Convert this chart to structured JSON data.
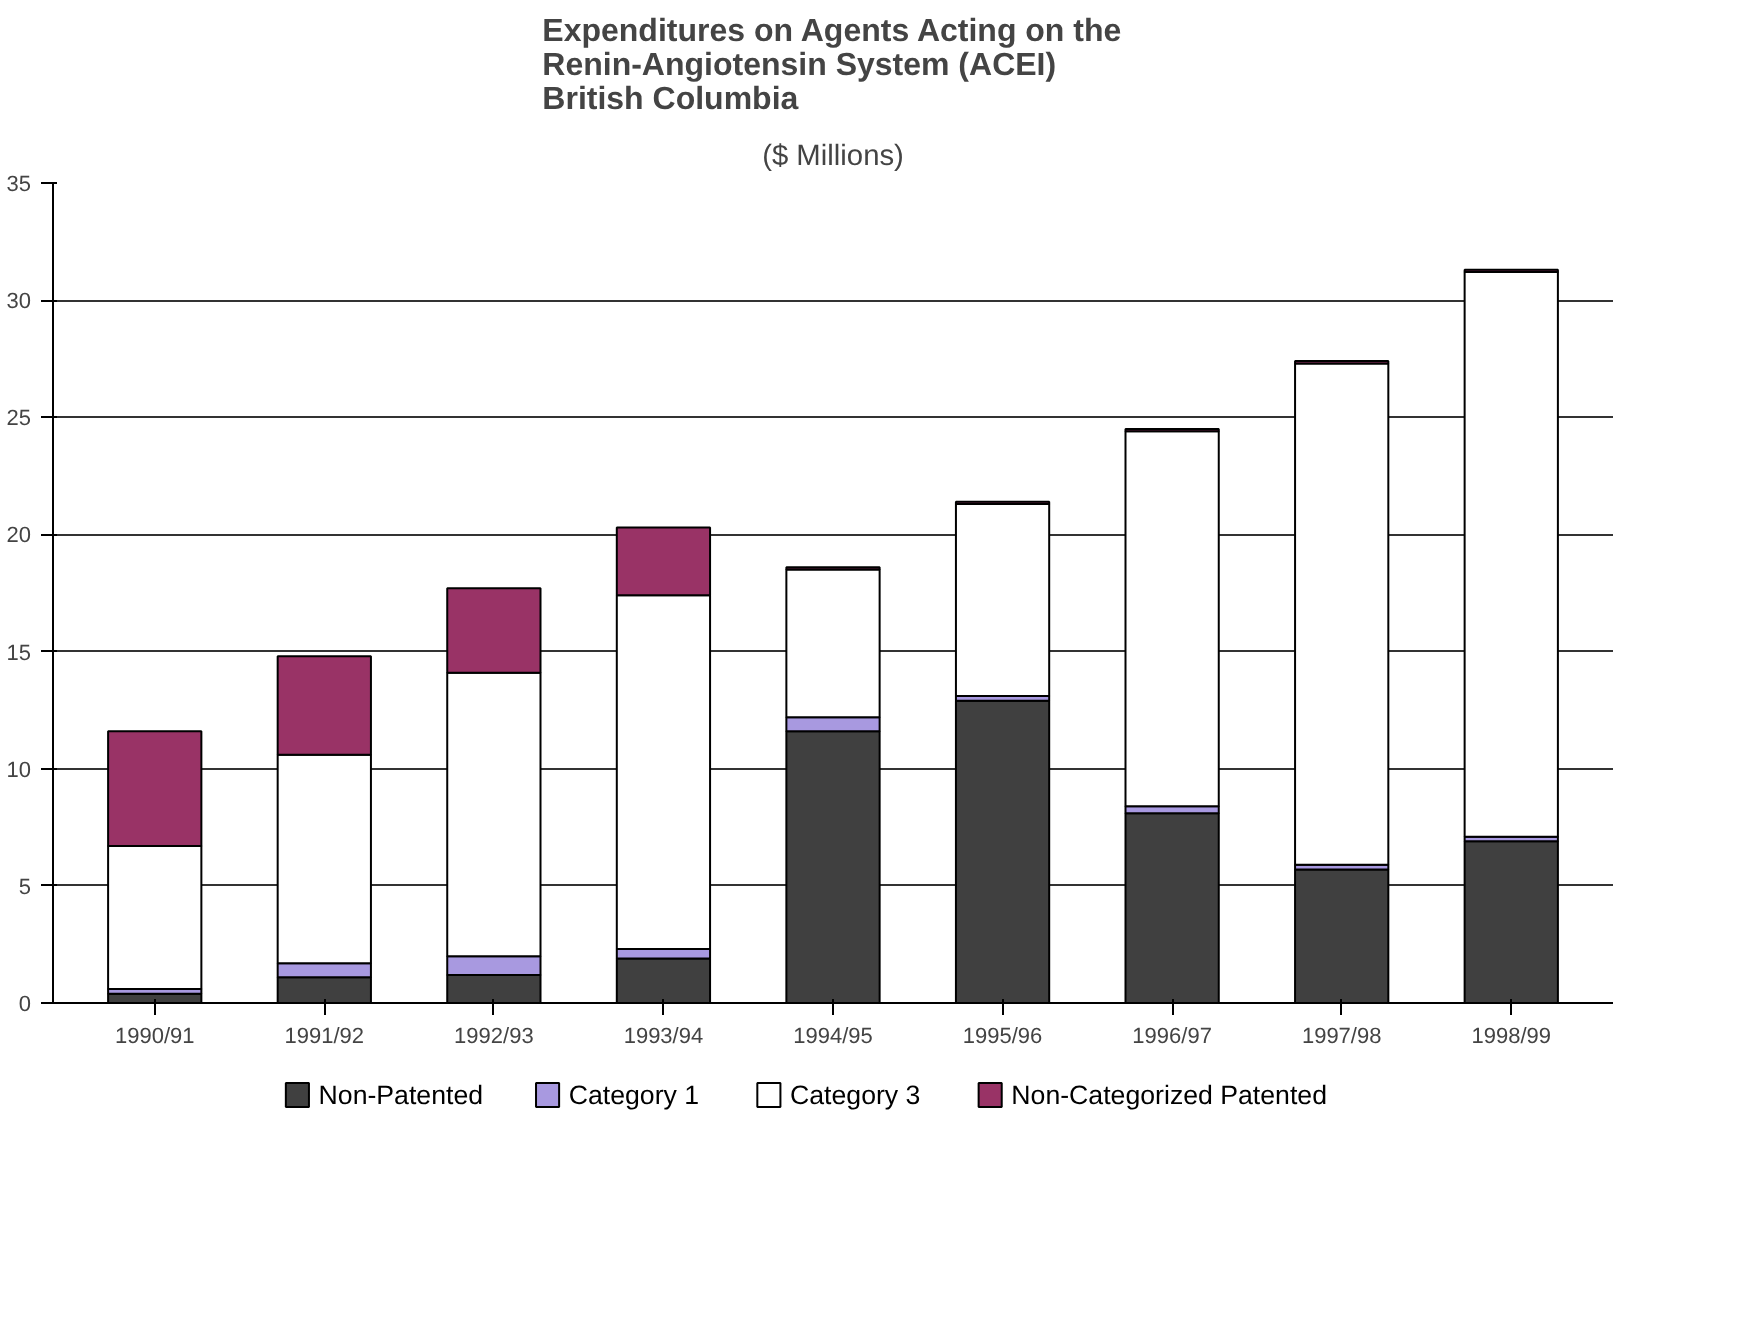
{
  "chart_data": {
    "type": "bar",
    "stacked": true,
    "title": "Expenditures on Agents Acting on the\nRenin-Angiotensin System (ACEI)\nBritish Columbia",
    "subtitle": "($ Millions)",
    "categories": [
      "1990/91",
      "1991/92",
      "1992/93",
      "1993/94",
      "1994/95",
      "1995/96",
      "1996/97",
      "1997/98",
      "1998/99"
    ],
    "series": [
      {
        "name": "Non-Patented",
        "color": "#404040",
        "values": [
          0.4,
          1.1,
          1.2,
          1.9,
          11.6,
          12.9,
          8.1,
          5.7,
          6.9
        ]
      },
      {
        "name": "Category 1",
        "color": "#a899e0",
        "values": [
          0.2,
          0.6,
          0.8,
          0.4,
          0.6,
          0.2,
          0.3,
          0.2,
          0.2
        ]
      },
      {
        "name": "Category 3",
        "color": "#ffffff",
        "values": [
          6.1,
          8.9,
          12.1,
          15.1,
          6.3,
          8.2,
          16.0,
          21.4,
          24.1
        ]
      },
      {
        "name": "Non-Categorized Patented",
        "color": "#993366",
        "values": [
          4.9,
          4.2,
          3.6,
          2.9,
          0.1,
          0.1,
          0.1,
          0.1,
          0.1
        ]
      }
    ],
    "ylim": [
      0,
      35
    ],
    "yticks": [
      0,
      5,
      10,
      15,
      20,
      25,
      30,
      35
    ],
    "grid": "y",
    "legend": "bottom"
  }
}
